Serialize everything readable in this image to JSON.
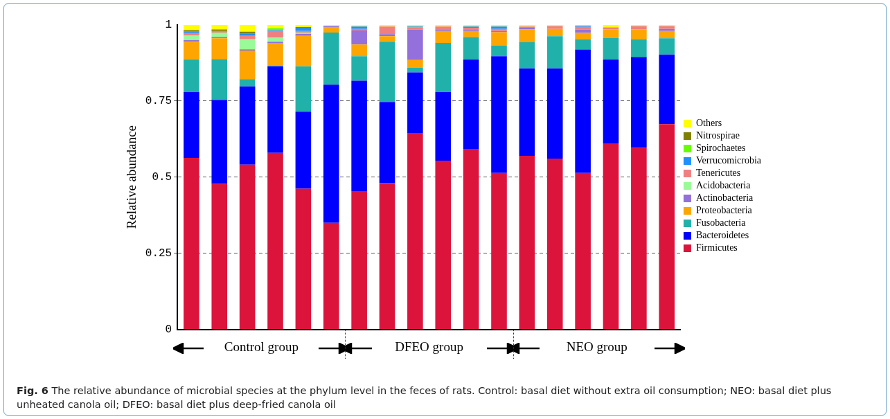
{
  "chart_data": {
    "type": "bar",
    "stacked": true,
    "ylabel": "Relative abundance",
    "categories": [
      null,
      null,
      null,
      null,
      null,
      null,
      null,
      null,
      null,
      null,
      null,
      null,
      null,
      null,
      null,
      null,
      null,
      null
    ],
    "ylim": [
      0,
      1
    ],
    "yticks": [
      0,
      0.25,
      0.5,
      0.75,
      1
    ],
    "grid": "y",
    "legend": "right",
    "series": [
      {
        "name": "Firmicutes",
        "color": "#dc143c",
        "values": [
          0.563,
          0.478,
          0.541,
          0.58,
          0.462,
          0.35,
          0.454,
          0.48,
          0.645,
          0.554,
          0.593,
          0.514,
          0.57,
          0.561,
          0.514,
          0.611,
          0.596,
          0.674
        ]
      },
      {
        "name": "Bacteroidetes",
        "color": "#0000ff",
        "values": [
          0.217,
          0.276,
          0.257,
          0.284,
          0.253,
          0.454,
          0.363,
          0.267,
          0.199,
          0.226,
          0.293,
          0.383,
          0.287,
          0.296,
          0.405,
          0.275,
          0.299,
          0.229
        ]
      },
      {
        "name": "Fusobacteria",
        "color": "#20b2aa",
        "values": [
          0.106,
          0.134,
          0.024,
          0.002,
          0.149,
          0.171,
          0.08,
          0.198,
          0.015,
          0.161,
          0.074,
          0.035,
          0.086,
          0.106,
          0.033,
          0.072,
          0.057,
          0.053
        ]
      },
      {
        "name": "Proteobacteria",
        "color": "#ffa500",
        "values": [
          0.059,
          0.068,
          0.094,
          0.075,
          0.1,
          0.018,
          0.039,
          0.018,
          0.027,
          0.039,
          0.02,
          0.044,
          0.042,
          0.024,
          0.022,
          0.027,
          0.033,
          0.024
        ]
      },
      {
        "name": "Actinobacteria",
        "color": "#9370db",
        "values": [
          0.005,
          0.004,
          0.004,
          0.004,
          0.007,
          0.003,
          0.046,
          0.007,
          0.099,
          0.004,
          0.004,
          0.004,
          0.006,
          0,
          0.011,
          0,
          0,
          0.007
        ]
      },
      {
        "name": "Acidobacteria",
        "color": "#98fb98",
        "values": [
          0.015,
          0.015,
          0.033,
          0.013,
          0.004,
          0,
          0,
          0,
          0,
          0,
          0,
          0,
          0,
          0,
          0,
          0,
          0,
          0
        ]
      },
      {
        "name": "Tenericutes",
        "color": "#f08080",
        "values": [
          0.008,
          0.005,
          0.011,
          0.022,
          0.005,
          0,
          0.005,
          0.025,
          0.007,
          0.011,
          0.007,
          0.007,
          0.004,
          0.009,
          0.009,
          0.007,
          0.011,
          0.009
        ]
      },
      {
        "name": "Verrucomicrobia",
        "color": "#1e90ff",
        "values": [
          0.005,
          0,
          0.007,
          0.003,
          0.013,
          0,
          0.008,
          0,
          0.003,
          0,
          0.004,
          0.008,
          0,
          0,
          0.003,
          0,
          0,
          0
        ]
      },
      {
        "name": "Spirochaetes",
        "color": "#66ff00",
        "values": [
          0,
          0,
          0,
          0.006,
          0,
          0,
          0,
          0,
          0,
          0,
          0,
          0,
          0,
          0,
          0,
          0,
          0,
          0
        ]
      },
      {
        "name": "Nitrospirae",
        "color": "#808000",
        "values": [
          0.005,
          0.005,
          0.007,
          0,
          0,
          0,
          0,
          0,
          0,
          0,
          0,
          0,
          0,
          0,
          0,
          0,
          0,
          0
        ]
      },
      {
        "name": "Others",
        "color": "#ffff00",
        "values": [
          0.017,
          0.015,
          0.022,
          0.011,
          0.007,
          0.004,
          0.004,
          0.005,
          0.005,
          0.005,
          0.005,
          0.005,
          0.005,
          0.004,
          0.004,
          0.008,
          0.004,
          0.004
        ]
      }
    ],
    "annotations": [
      "Control group",
      "DFEO group",
      "NEO group",
      "Fig. 6 The relative abundance of microbial species at the phylum level in the feces of rats. Control: basal diet without extra oil consumption; NEO: basal diet plus unheated canola oil; DFEO: basal diet plus deep-fried canola oil"
    ]
  }
}
